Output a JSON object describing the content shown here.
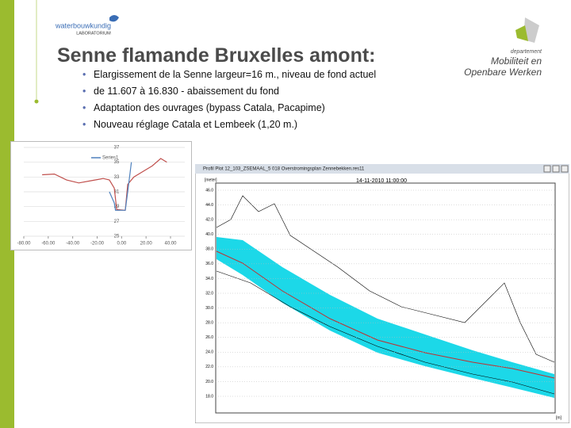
{
  "header": {
    "lab_logo": "waterbouwkundig",
    "lab_sub": "LABORATORIUM",
    "dept_small": "departement",
    "dept_line1": "Mobiliteit en",
    "dept_line2": "Openbare Werken"
  },
  "title": "Senne flamande Bruxelles amont:",
  "bullets": [
    "Elargissement de la Senne largeur=16 m., niveau de fond actuel",
    "de 11.607 à 16.830  - abaissement du fond",
    "Adaptation des ouvrages (bypass Catala, Pacapime)",
    "Nouveau réglage Catala et Lembeek (1,20 m.)"
  ],
  "cross_section": {
    "legend": "Series1",
    "xlim": [
      -80,
      40
    ],
    "ylim": [
      25,
      37
    ],
    "xticks": [
      {
        "value": -80,
        "label": "-80.00"
      },
      {
        "value": -60,
        "label": "-60.00"
      },
      {
        "value": -40,
        "label": "-40.00"
      },
      {
        "value": -20,
        "label": "-20.00"
      },
      {
        "value": 0,
        "label": "0.00"
      },
      {
        "value": 20,
        "label": "20.00"
      },
      {
        "value": 40,
        "label": "40.00"
      }
    ],
    "yticks": [
      25,
      27,
      29,
      31,
      33,
      35,
      37
    ],
    "series": [
      {
        "color": "#c0504d",
        "x": [
          -65,
          -55,
          -45,
          -35,
          -25,
          -15,
          -10,
          -6,
          -4,
          3,
          5,
          10,
          20,
          25,
          32,
          37
        ],
        "values": [
          33.3,
          33.4,
          32.6,
          32.2,
          32.5,
          32.8,
          32.6,
          31.5,
          28.6,
          28.5,
          32,
          33,
          34,
          34.5,
          35.5,
          35
        ]
      },
      {
        "color": "#4f81bd",
        "x": [
          -10,
          -6,
          -5,
          3,
          5,
          8
        ],
        "values": [
          31,
          29.5,
          28.5,
          28.5,
          31,
          35
        ]
      }
    ]
  },
  "profile_plot": {
    "window_title": "Profil Plot 12_103_ZSEMAAL_5 018 Overstromingsplan Zennebekken.res11",
    "date": "14-11-2010 11:00:00",
    "y_unit": "[meter]",
    "x_unit": "[m]",
    "yticks": [
      "46.0",
      "44.0",
      "42.0",
      "40.0",
      "38.0",
      "36.0",
      "34.0",
      "32.0",
      "30.0",
      "28.0",
      "26.0",
      "24.0",
      "22.0",
      "20.0",
      "18.0"
    ]
  }
}
